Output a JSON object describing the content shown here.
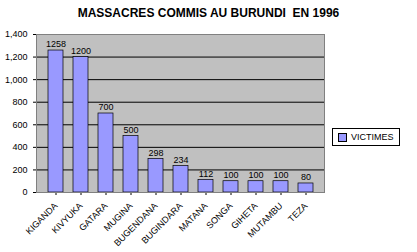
{
  "chart_data": {
    "type": "bar",
    "title": "MASSACRES COMMIS AU BURUNDI  EN 1996",
    "categories": [
      "KIGANDA",
      "KIVYUKA",
      "GATARA",
      "MUGINA",
      "BUGENDANA",
      "BUGINDARA",
      "MATANA",
      "SONGA",
      "GIHETA",
      "MUTAMBU",
      "TEZA"
    ],
    "series": [
      {
        "name": "VICTIMES",
        "color": "#9999ff",
        "values": [
          1258,
          1200,
          700,
          500,
          298,
          234,
          112,
          100,
          100,
          100,
          80
        ]
      }
    ],
    "ylim": [
      0,
      1400
    ],
    "yticks": [
      0,
      200,
      400,
      600,
      800,
      1000,
      1200,
      1400
    ],
    "grid": true,
    "legend": "right",
    "data_labels": true
  }
}
